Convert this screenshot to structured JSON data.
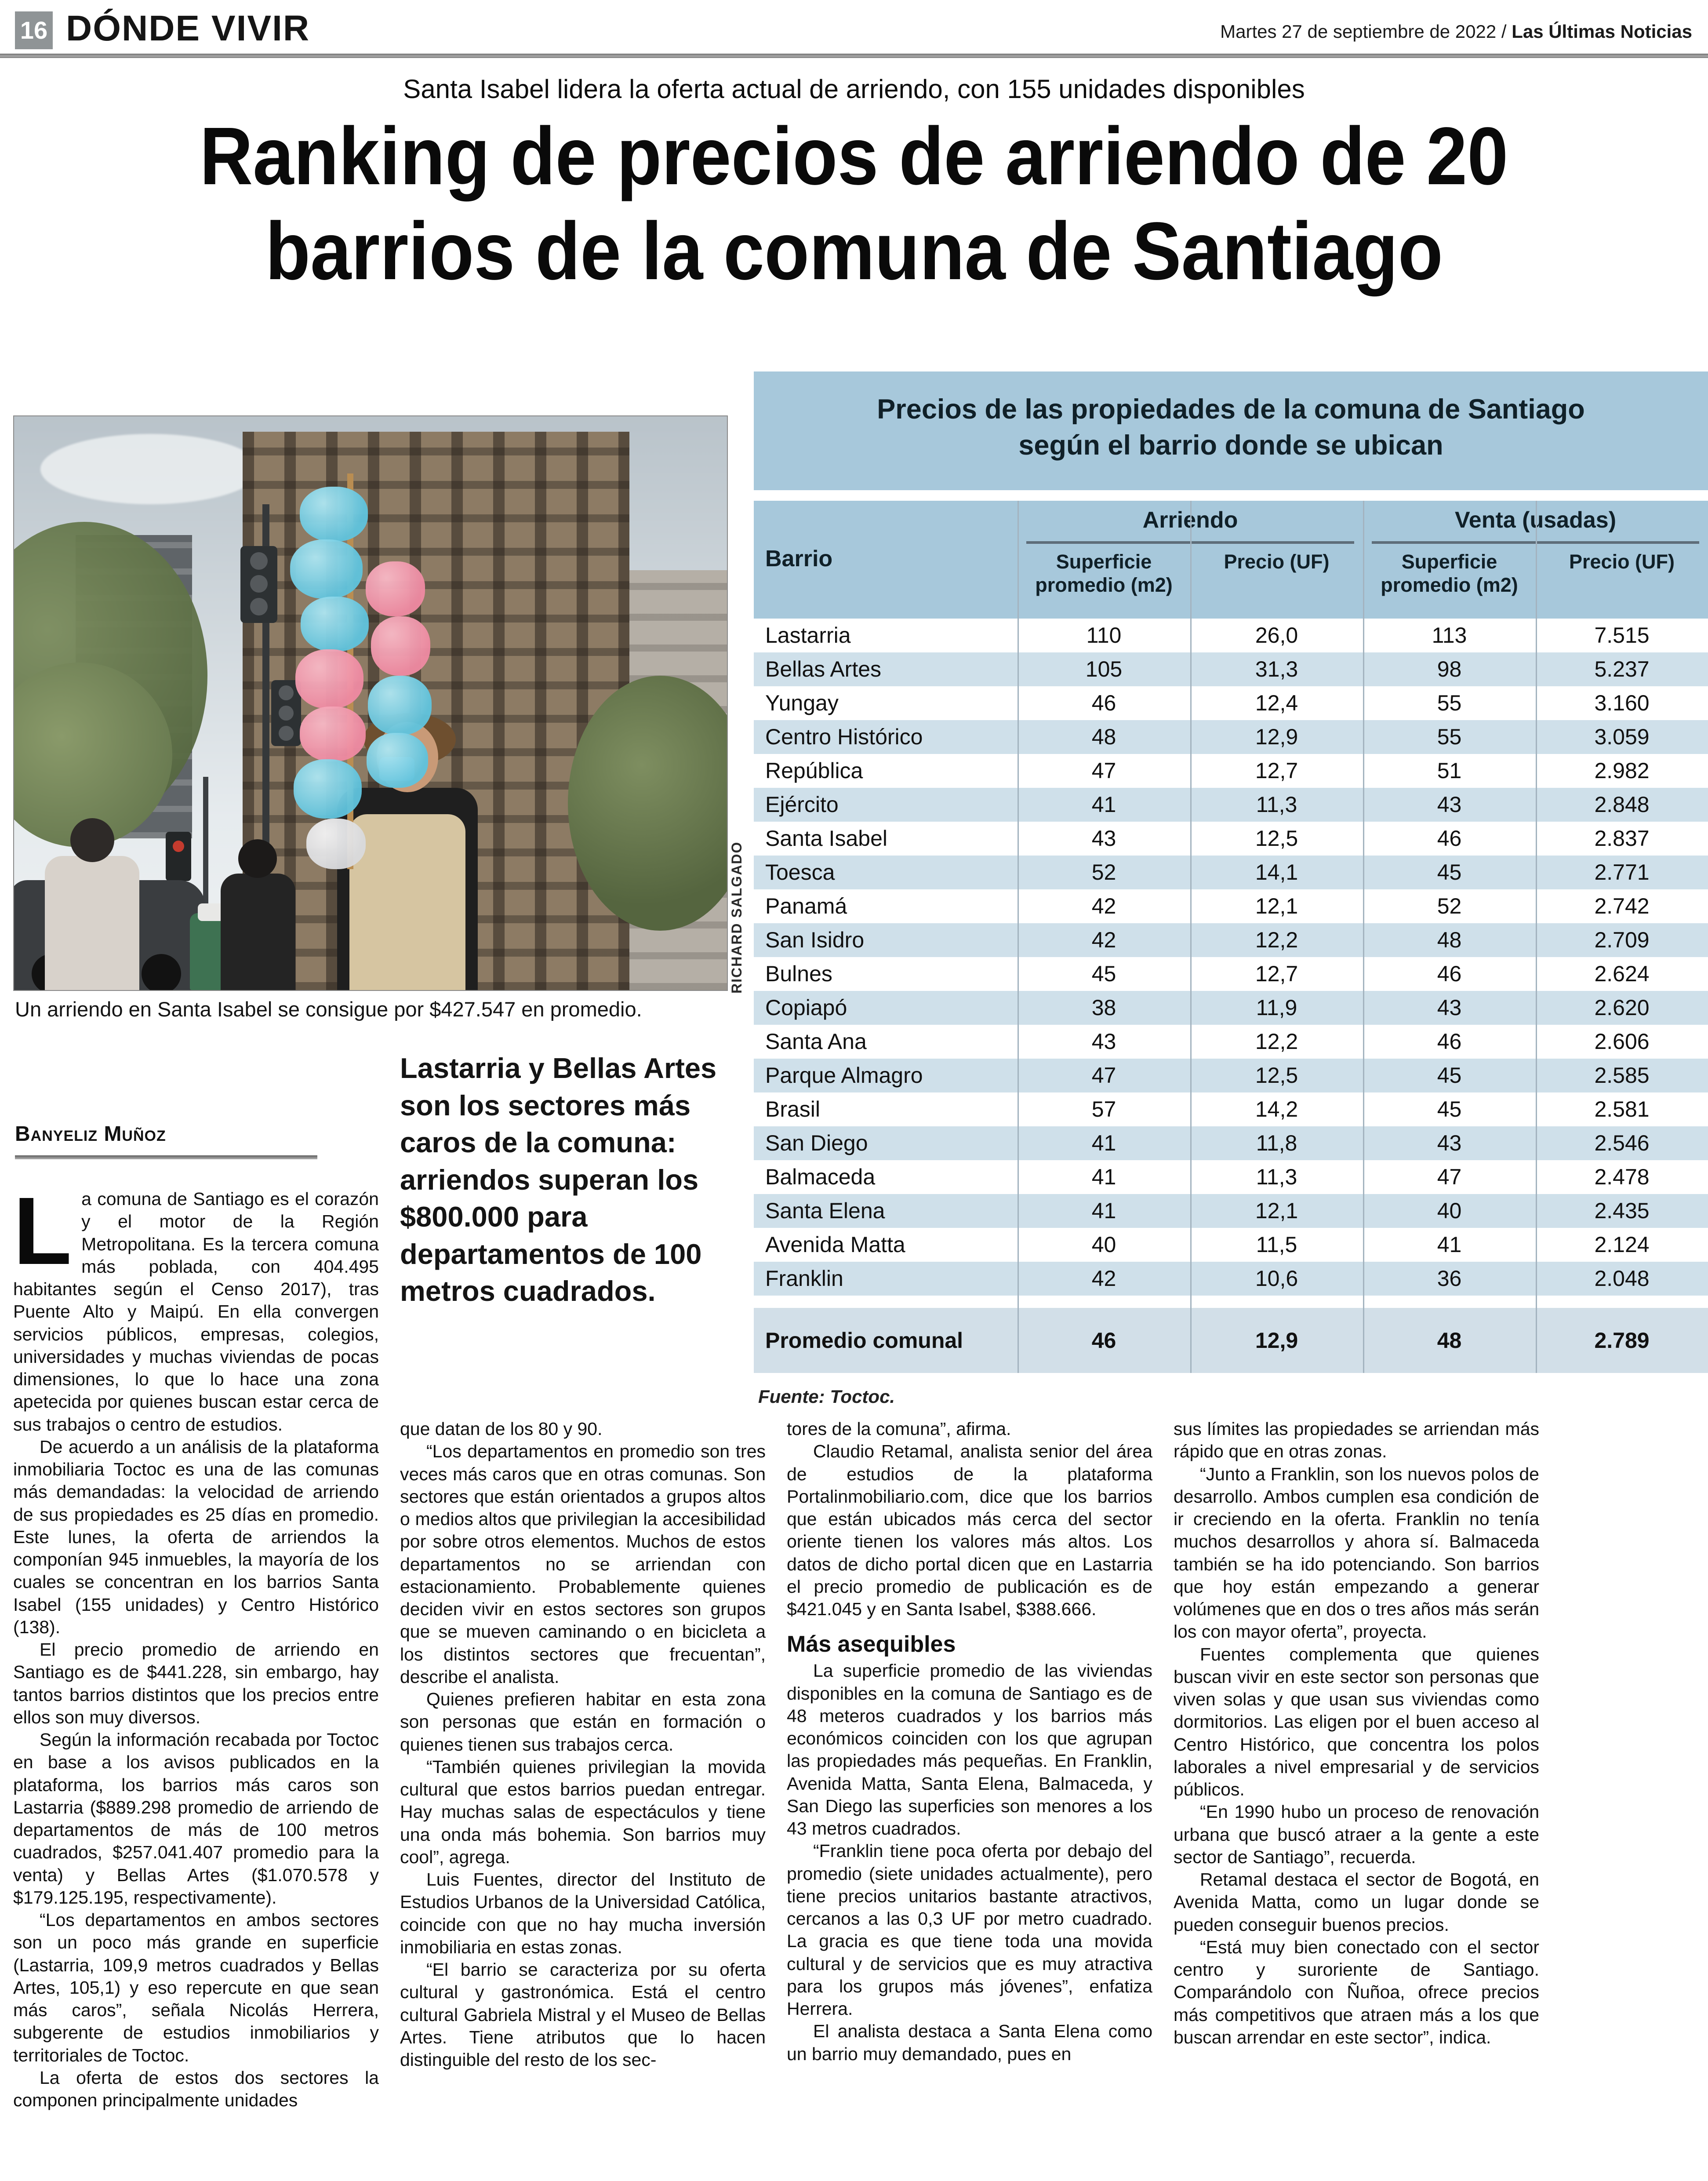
{
  "header": {
    "page_number": "16",
    "section": "DÓNDE VIVIR",
    "date_line": "Martes 27 de septiembre de 2022 /",
    "publication": "Las Últimas Noticias"
  },
  "deck": "Santa Isabel lidera la oferta actual de arriendo, con 155 unidades disponibles",
  "headline": {
    "line1": "Ranking de precios de arriendo de 20",
    "line2": "barrios de la comuna de Santiago"
  },
  "photo": {
    "caption": "Un arriendo en Santa Isabel se consigue por $427.547 en promedio.",
    "credit": "RICHARD SALGADO"
  },
  "byline": "Banyeliz Muñoz",
  "pull_quote": "Lastarria y Bellas Artes son los sectores más caros de la comuna: arriendos superan los $800.000 para departamentos de 100 metros cuadrados.",
  "table": {
    "title_line1": "Precios de las propiedades de la comuna de Santiago",
    "title_line2": "según el barrio donde se ubican",
    "col_barrio": "Barrio",
    "group_arriendo": "Arriendo",
    "group_venta": "Venta (usadas)",
    "sub_superficie": "Superficie promedio (m2)",
    "sub_precio": "Precio (UF)",
    "rows": [
      [
        "Lastarria",
        "110",
        "26,0",
        "113",
        "7.515"
      ],
      [
        "Bellas Artes",
        "105",
        "31,3",
        "98",
        "5.237"
      ],
      [
        "Yungay",
        "46",
        "12,4",
        "55",
        "3.160"
      ],
      [
        "Centro Histórico",
        "48",
        "12,9",
        "55",
        "3.059"
      ],
      [
        "República",
        "47",
        "12,7",
        "51",
        "2.982"
      ],
      [
        "Ejército",
        "41",
        "11,3",
        "43",
        "2.848"
      ],
      [
        "Santa Isabel",
        "43",
        "12,5",
        "46",
        "2.837"
      ],
      [
        "Toesca",
        "52",
        "14,1",
        "45",
        "2.771"
      ],
      [
        "Panamá",
        "42",
        "12,1",
        "52",
        "2.742"
      ],
      [
        "San Isidro",
        "42",
        "12,2",
        "48",
        "2.709"
      ],
      [
        "Bulnes",
        "45",
        "12,7",
        "46",
        "2.624"
      ],
      [
        "Copiapó",
        "38",
        "11,9",
        "43",
        "2.620"
      ],
      [
        "Santa Ana",
        "43",
        "12,2",
        "46",
        "2.606"
      ],
      [
        "Parque Almagro",
        "47",
        "12,5",
        "45",
        "2.585"
      ],
      [
        "Brasil",
        "57",
        "14,2",
        "45",
        "2.581"
      ],
      [
        "San Diego",
        "41",
        "11,8",
        "43",
        "2.546"
      ],
      [
        "Balmaceda",
        "41",
        "11,3",
        "47",
        "2.478"
      ],
      [
        "Santa Elena",
        "41",
        "12,1",
        "40",
        "2.435"
      ],
      [
        "Avenida Matta",
        "40",
        "11,5",
        "41",
        "2.124"
      ],
      [
        "Franklin",
        "42",
        "10,6",
        "36",
        "2.048"
      ]
    ],
    "total_row": [
      "Promedio comunal",
      "46",
      "12,9",
      "48",
      "2.789"
    ],
    "source": "Fuente: Toctoc."
  },
  "chart_data": {
    "type": "table",
    "title": "Precios de las propiedades de la comuna de Santiago según el barrio donde se ubican",
    "columns": [
      "Barrio",
      "Arriendo Superficie promedio (m2)",
      "Arriendo Precio (UF)",
      "Venta (usadas) Superficie promedio (m2)",
      "Venta (usadas) Precio (UF)"
    ],
    "source": "Fuente: Toctoc."
  },
  "body": {
    "col1": [
      {
        "drop": true,
        "text": "La comuna de Santiago es el corazón y el motor de la Región Metropolitana. Es la tercera comuna más poblada, con 404.495 habitantes según el Censo 2017), tras Puente Alto y Maipú. En ella convergen servicios públicos, empresas, colegios, universidades y muchas viviendas de pocas dimensiones, lo que lo hace una zona apetecida por quienes buscan estar cerca de sus trabajos o centro de estudios."
      },
      {
        "text": "De acuerdo a un análisis de la plataforma inmobiliaria Toctoc es una de las comunas más demandadas: la velocidad de arriendo de sus propiedades es 25 días en promedio. Este lunes, la oferta de arriendos la componían 945 inmuebles, la mayoría de los cuales se concentran en los barrios Santa Isabel (155 unidades) y Centro Histórico (138)."
      },
      {
        "text": "El precio promedio de arriendo en Santiago es de $441.228, sin embargo, hay tantos barrios distintos que los precios entre ellos son muy diversos."
      },
      {
        "text": "Según la información recabada por Toctoc en base a los avisos publicados en la plataforma, los barrios más caros son Lastarria ($889.298 promedio de arriendo de departamentos de más de 100 metros cuadrados, $257.041.407 promedio para la venta) y Bellas Artes ($1.070.578 y $179.125.195, respectivamente)."
      },
      {
        "text": "“Los departamentos en ambos sectores son un poco más grande en superficie (Lastarria, 109,9 metros cuadrados y Bellas Artes, 105,1) y eso repercute en que sean más caros”, señala Nicolás Herrera, subgerente de estudios inmobiliarios y territoriales de Toctoc."
      },
      {
        "text": "La oferta de estos dos sectores la componen principalmente unidades"
      }
    ],
    "col2": [
      {
        "noind": true,
        "text": "que datan de los 80 y 90."
      },
      {
        "text": "“Los departamentos en promedio son tres veces más caros que en otras comunas. Son sectores que están orientados a grupos altos o medios altos que privilegian la accesibilidad por sobre otros elementos. Muchos de estos departamentos no se arriendan con estacionamiento. Probablemente quienes deciden vivir en estos sectores son grupos que se mueven caminando o en bicicleta a los distintos sectores que frecuentan”, describe el analista."
      },
      {
        "text": "Quienes prefieren habitar en esta zona son personas que están en formación o quienes tienen sus trabajos cerca."
      },
      {
        "text": "“También quienes privilegian la movida cultural que estos barrios puedan entregar. Hay muchas salas de espectáculos y tiene una onda más bohemia. Son barrios muy cool”, agrega."
      },
      {
        "text": "Luis Fuentes, director del Instituto de Estudios Urbanos de la Universidad Católica, coincide con que no hay mucha inversión inmobiliaria en estas zonas."
      },
      {
        "text": "“El barrio se caracteriza por su oferta cultural y gastronómica. Está el centro cultural Gabriela Mistral y el Museo de Bellas Artes. Tiene atributos que lo hacen distinguible del resto de los sec-"
      }
    ],
    "col3": [
      {
        "noind": true,
        "text": "tores de la comuna”, afirma."
      },
      {
        "text": "Claudio Retamal, analista senior del área de estudios de la plataforma Portalinmobiliario.com, dice que los barrios que están ubicados más cerca del sector oriente tienen los valores más altos. Los datos de dicho portal dicen que en Lastarria el precio promedio de publicación es de $421.045 y en Santa Isabel, $388.666."
      },
      {
        "subhead": true,
        "text": "Más asequibles"
      },
      {
        "text": "La superficie promedio de las viviendas disponibles en la comuna de Santiago es de 48 meteros cuadrados y los barrios más económicos coinciden con los que agrupan las propiedades más pequeñas. En Franklin, Avenida Matta, Santa Elena, Balmaceda, y San Diego las superficies son menores a los 43 metros cuadrados."
      },
      {
        "text": "“Franklin tiene poca oferta por debajo del promedio (siete unidades actualmente), pero tiene precios unitarios bastante atractivos, cercanos a las 0,3 UF por metro cuadrado. La gracia es que tiene toda una movida cultural y de servicios que es muy atractiva para los grupos más jóvenes”, enfatiza Herrera."
      },
      {
        "text": "El analista destaca a Santa Elena como un barrio muy demandado, pues en"
      }
    ],
    "col4": [
      {
        "noind": true,
        "text": "sus límites las propiedades se arriendan más rápido que en otras zonas."
      },
      {
        "text": "“Junto a Franklin, son los nuevos polos de desarrollo. Ambos cumplen esa condición de ir creciendo en la oferta. Franklin no tenía muchos desarrollos y ahora sí. Balmaceda también se ha ido potenciando. Son barrios que hoy están empezando a generar volúmenes que en dos o tres años más serán los con mayor oferta”, proyecta."
      },
      {
        "text": "Fuentes complementa que quienes buscan vivir en este sector son personas que viven solas y que usan sus viviendas como dormitorios. Las eligen por el buen acceso al Centro Histórico, que concentra los polos laborales a nivel empresarial y de servicios públicos."
      },
      {
        "text": "“En 1990 hubo un proceso de renovación urbana que buscó atraer a la gente a este sector de Santiago”, recuerda."
      },
      {
        "text": "Retamal destaca el sector de Bogotá, en Avenida Matta, como un lugar donde se pueden conseguir buenos precios."
      },
      {
        "text": "“Está muy bien conectado con el sector centro y suroriente de Santiago. Comparándolo con Ñuñoa, ofrece precios más competitivos que atraen más a los que buscan arrendar en este sector”, indica."
      }
    ]
  }
}
